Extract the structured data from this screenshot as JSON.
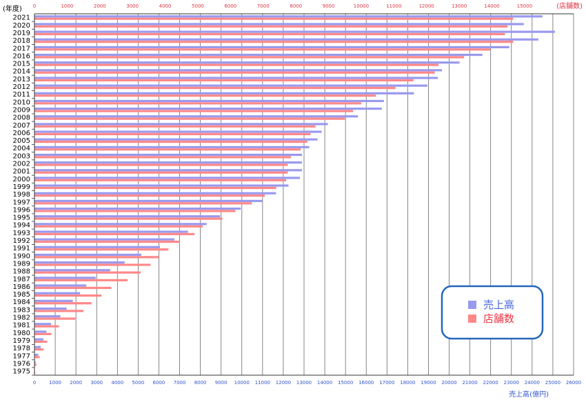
{
  "chart_data": {
    "type": "bar",
    "orientation": "horizontal",
    "ylabel": "(年度)",
    "xlabel": "売上高(億円)",
    "x2label": "(店舗数)",
    "categories": [
      "2021",
      "2020",
      "2019",
      "2018",
      "2017",
      "2016",
      "2015",
      "2014",
      "2013",
      "2012",
      "2011",
      "2010",
      "2009",
      "2008",
      "2007",
      "2006",
      "2005",
      "2004",
      "2003",
      "2002",
      "2001",
      "2000",
      "1999",
      "1998",
      "1997",
      "1996",
      "1995",
      "1994",
      "1993",
      "1992",
      "1991",
      "1990",
      "1989",
      "1988",
      "1987",
      "1986",
      "1985",
      "1984",
      "1983",
      "1982",
      "1981",
      "1980",
      "1979",
      "1978",
      "1977",
      "1976",
      "1975"
    ],
    "xlim": [
      0,
      26000
    ],
    "x2lim": [
      0,
      16500
    ],
    "x_ticks": [
      "0",
      "1000",
      "2000",
      "3000",
      "4000",
      "5000",
      "6000",
      "7000",
      "8000",
      "9000",
      "10000",
      "11000",
      "12000",
      "13000",
      "14000",
      "15000",
      "16000",
      "17000",
      "18000",
      "19000",
      "20000",
      "21000",
      "22000",
      "23000",
      "24000",
      "25000",
      "26000"
    ],
    "x2_ticks": [
      "0",
      "1000",
      "2000",
      "3000",
      "4000",
      "5000",
      "6000",
      "7000",
      "8000",
      "9000",
      "10000",
      "11000",
      "12000",
      "13000",
      "14000",
      "15000"
    ],
    "grid": true,
    "legend_position": "bottom-right",
    "series": [
      {
        "name": "売上高",
        "axis": "bottom",
        "color": "#9999ee",
        "values": [
          24500,
          23600,
          25100,
          24300,
          22900,
          21600,
          20500,
          19650,
          19450,
          18950,
          18300,
          16850,
          16750,
          15600,
          14150,
          13850,
          13650,
          13250,
          12900,
          12900,
          12900,
          12800,
          12250,
          11650,
          11000,
          9950,
          8950,
          8300,
          7400,
          6750,
          6050,
          5150,
          4350,
          3650,
          2950,
          2500,
          2200,
          1850,
          1550,
          1250,
          800,
          580,
          430,
          300,
          180,
          60,
          20
        ]
      },
      {
        "name": "店舗数",
        "axis": "top",
        "color": "#ff8888",
        "values": [
          14650,
          14480,
          14400,
          14650,
          13950,
          13150,
          12370,
          12250,
          11600,
          11050,
          10450,
          10000,
          9750,
          9500,
          8600,
          8450,
          8350,
          8150,
          7850,
          7750,
          7750,
          7700,
          7400,
          7050,
          6650,
          6150,
          5750,
          5150,
          4900,
          4450,
          4100,
          3800,
          3550,
          3250,
          2850,
          2350,
          2050,
          1750,
          1500,
          1250,
          750,
          520,
          390,
          280,
          160,
          60,
          20
        ]
      }
    ]
  }
}
